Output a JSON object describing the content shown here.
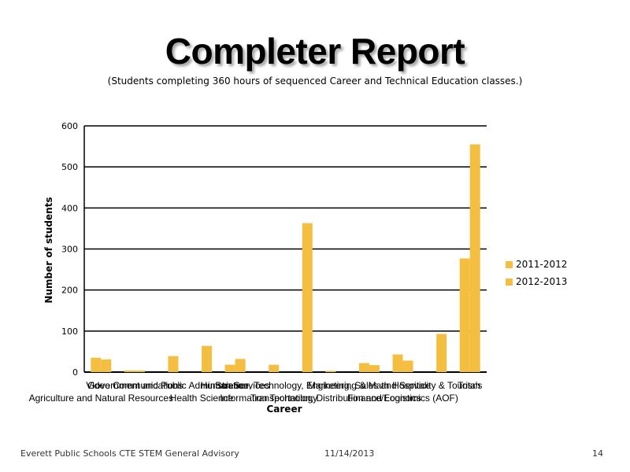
{
  "slide": {
    "title": "Completer Report",
    "subtitle": "(Students completing 360 hours of sequenced Career and Technical Education classes.)",
    "footer_left": "Everett Public Schools CTE STEM General Advisory",
    "footer_date": "11/14/2013",
    "page_number": "14"
  },
  "colors": {
    "bar_2011": "#F4BE41",
    "bar_2012": "#F4BE41",
    "gridline": "#000000"
  },
  "chart_data": {
    "type": "bar",
    "title": "",
    "xlabel": "Career",
    "ylabel": "Number of students",
    "ylim": [
      0,
      600
    ],
    "yticks": [
      0,
      100,
      200,
      300,
      400,
      500,
      600
    ],
    "grid": true,
    "legend_position": "right",
    "categories": [
      "Agriculture and Natural Resources",
      "Video Communications",
      "Government and Public Administration",
      "Health Science",
      "Human Services",
      "Information Technology",
      "Science, Technology, Engineering & Mathematics",
      "Transportation, Distribution and Logistics",
      "Marketing, Sales & Service",
      "Finance",
      "Hospitality and Tourism",
      "Totals"
    ],
    "category_labels": [
      {
        "row": 2,
        "text": "Agriculture and Natural Resources"
      },
      {
        "row": 1,
        "text": "Video Communications"
      },
      {
        "row": 1,
        "text": "Government and Public Administration"
      },
      {
        "row": 2,
        "text": "Health Science"
      },
      {
        "row": 1,
        "text": "Human Services"
      },
      {
        "row": 2,
        "text": "Information Technology"
      },
      {
        "row": 1,
        "text": "Science, Technology, Engineering & Math"
      },
      {
        "row": 2,
        "text": "Transportation, Distribution and Logistics"
      },
      {
        "row": 1,
        "text": "Marketing, Sales and Service"
      },
      {
        "row": 2,
        "text": "Finance/Economics (AOF)"
      },
      {
        "row": 1,
        "text": "Hospitality & Tourism"
      },
      {
        "row": 1,
        "text": "Totals"
      }
    ],
    "series": [
      {
        "name": "2011-2012",
        "values": [
          35,
          4,
          0,
          0,
          18,
          0,
          0,
          3,
          22,
          43,
          0,
          277
        ]
      },
      {
        "name": "2012-2013",
        "values": [
          31,
          4,
          39,
          64,
          32,
          18,
          363,
          0,
          17,
          28,
          93,
          555
        ]
      }
    ]
  }
}
